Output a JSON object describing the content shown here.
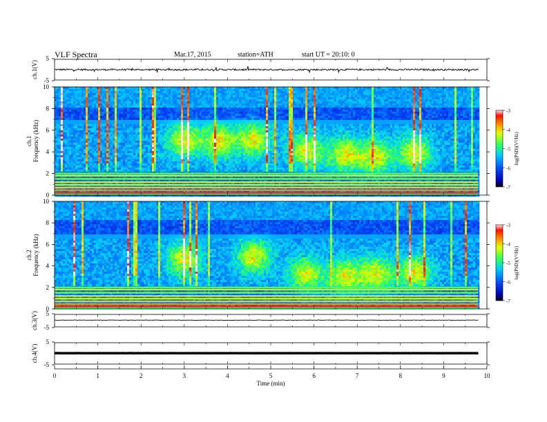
{
  "header": {
    "title": "VLF  Spectra",
    "date": "Mar.17, 2015",
    "station": "station=ATH",
    "start": "start  UT  =   20:10: 0"
  },
  "chart_data": [
    {
      "type": "line",
      "panel": "ch1-waveform",
      "ylabel": "ch.1(V)",
      "ylim": [
        -5,
        5
      ],
      "yticks": [
        "5",
        "-5"
      ],
      "xlim": [
        0,
        10
      ],
      "x_end": 9.8,
      "baseline": 0,
      "noise": 0.4
    },
    {
      "type": "heatmap",
      "panel": "ch1-spectrogram",
      "ylabel": "ch.1\nFrequency  (kHz)",
      "ylabel_line1": "ch.1",
      "ylabel_line2": "Frequency  (kHz)",
      "ylim": [
        0,
        10
      ],
      "yticks": [
        "0",
        "2",
        "4",
        "6",
        "8",
        "10"
      ],
      "xlim": [
        0,
        10
      ],
      "x_end": 9.8,
      "colorbar": {
        "label": "log(PSD)(V²/Hz)",
        "range": [
          -7,
          -3
        ],
        "ticks": [
          "-3",
          "-4",
          "-5",
          "-6",
          "-7"
        ]
      },
      "emissions": [
        {
          "t": 3.0,
          "f": 5.1,
          "level": -4.6
        },
        {
          "t": 3.8,
          "f": 5.0,
          "level": -4.7
        },
        {
          "t": 4.6,
          "f": 5.2,
          "level": -4.6
        },
        {
          "t": 5.8,
          "f": 4.2,
          "level": -4.4
        },
        {
          "t": 6.7,
          "f": 3.8,
          "level": -4.5
        },
        {
          "t": 7.4,
          "f": 3.6,
          "level": -4.8
        },
        {
          "t": 8.3,
          "f": 4.0,
          "level": -4.7
        }
      ]
    },
    {
      "type": "heatmap",
      "panel": "ch2-spectrogram",
      "ylabel": "ch.2\nFrequency  (kHz)",
      "ylabel_line1": "ch.2",
      "ylabel_line2": "Frequency  (kHz)",
      "ylim": [
        0,
        10
      ],
      "yticks": [
        "0",
        "2",
        "4",
        "6",
        "8",
        "10"
      ],
      "xlim": [
        0,
        10
      ],
      "x_end": 9.8,
      "colorbar": {
        "label": "log(PSD)(V²/Hz)",
        "range": [
          -7,
          -3
        ],
        "ticks": [
          "-3",
          "-4",
          "-5",
          "-6",
          "-7"
        ]
      },
      "emissions": [
        {
          "t": 3.0,
          "f": 4.6,
          "level": -4.6
        },
        {
          "t": 4.6,
          "f": 4.8,
          "level": -4.7
        },
        {
          "t": 5.8,
          "f": 3.2,
          "level": -4.4
        },
        {
          "t": 6.7,
          "f": 3.0,
          "level": -4.4
        },
        {
          "t": 7.4,
          "f": 3.2,
          "level": -4.7
        },
        {
          "t": 8.3,
          "f": 3.4,
          "level": -4.7
        }
      ]
    },
    {
      "type": "line",
      "panel": "ch3-waveform",
      "ylabel": "ch.3(V)",
      "ylim": [
        -5,
        5
      ],
      "yticks": [
        "5",
        "-5"
      ],
      "xlim": [
        0,
        10
      ],
      "x_end": 9.8,
      "baseline": 0.4,
      "noise": 0.15
    },
    {
      "type": "line",
      "panel": "ch4-waveform",
      "ylabel": "ch.4(V)",
      "ylim": [
        -5,
        5
      ],
      "yticks": [
        "5",
        "-5"
      ],
      "xlim": [
        0,
        10
      ],
      "x_end": 9.8,
      "baseline": 0.1,
      "noise": 0.05,
      "thick": true
    }
  ],
  "xaxis": {
    "label": "Time  (min)",
    "ticks": [
      "0",
      "1",
      "2",
      "3",
      "4",
      "5",
      "6",
      "7",
      "8",
      "9",
      "10"
    ]
  }
}
